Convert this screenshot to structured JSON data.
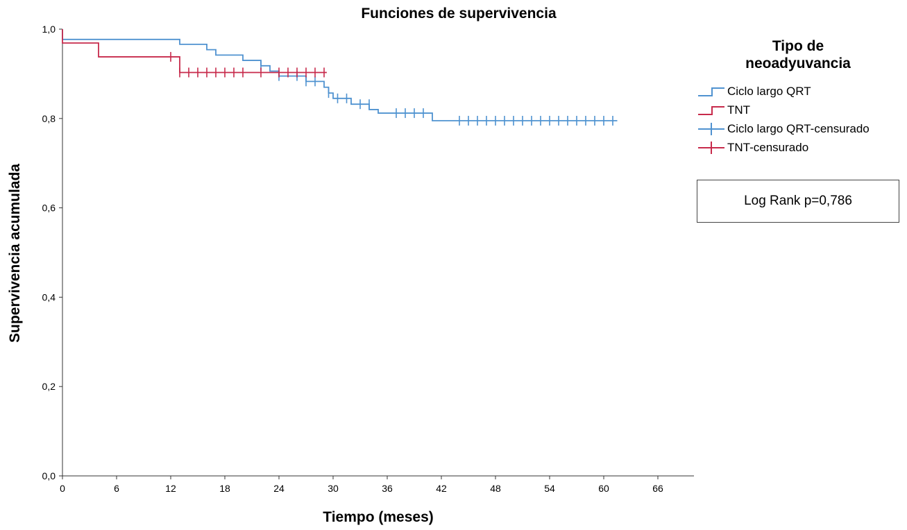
{
  "chart_data": {
    "type": "line",
    "step": true,
    "title": "Funciones de supervivencia",
    "xlabel": "Tiempo (meses)",
    "ylabel": "Supervivencia acumulada",
    "xlim": [
      0,
      70
    ],
    "ylim": [
      0,
      1
    ],
    "xticks": [
      0,
      6,
      12,
      18,
      24,
      30,
      36,
      42,
      48,
      54,
      60,
      66
    ],
    "xtick_labels": [
      "0",
      "6",
      "12",
      "18",
      "24",
      "30",
      "36",
      "42",
      "48",
      "54",
      "60",
      "66"
    ],
    "yticks": [
      0,
      0.2,
      0.4,
      0.6,
      0.8,
      1.0
    ],
    "ytick_labels": [
      "0,0",
      "0,2",
      "0,4",
      "0,6",
      "0,8",
      "1,0"
    ],
    "grid": false,
    "legend": {
      "title": "Tipo de neoadyuvancia",
      "title_lines": [
        "Tipo de",
        "neoadyuvancia"
      ],
      "placement": "right",
      "entries": [
        "Ciclo largo QRT",
        "TNT",
        "Ciclo largo QRT-censurado",
        "TNT-censurado"
      ]
    },
    "annotation": "Log Rank p=0,786",
    "series": [
      {
        "name": "Ciclo largo QRT",
        "color": "#4f92d0",
        "steps": [
          [
            0,
            1.0
          ],
          [
            0,
            0.977
          ],
          [
            13,
            0.966
          ],
          [
            16,
            0.954
          ],
          [
            17,
            0.942
          ],
          [
            20,
            0.93
          ],
          [
            22,
            0.918
          ],
          [
            23,
            0.906
          ],
          [
            24,
            0.895
          ],
          [
            27,
            0.883
          ],
          [
            29,
            0.87
          ],
          [
            29.5,
            0.857
          ],
          [
            30,
            0.845
          ],
          [
            32,
            0.832
          ],
          [
            34,
            0.82
          ],
          [
            35,
            0.812
          ],
          [
            41,
            0.795
          ],
          [
            61.5,
            0.795
          ]
        ],
        "censored": [
          [
            22,
            0.918
          ],
          [
            24,
            0.895
          ],
          [
            26,
            0.895
          ],
          [
            27,
            0.883
          ],
          [
            28,
            0.883
          ],
          [
            29.5,
            0.857
          ],
          [
            30.5,
            0.845
          ],
          [
            31.5,
            0.845
          ],
          [
            33,
            0.832
          ],
          [
            34,
            0.832
          ],
          [
            37,
            0.812
          ],
          [
            38,
            0.812
          ],
          [
            39,
            0.812
          ],
          [
            40,
            0.812
          ],
          [
            44,
            0.795
          ],
          [
            45,
            0.795
          ],
          [
            46,
            0.795
          ],
          [
            47,
            0.795
          ],
          [
            48,
            0.795
          ],
          [
            49,
            0.795
          ],
          [
            50,
            0.795
          ],
          [
            51,
            0.795
          ],
          [
            52,
            0.795
          ],
          [
            53,
            0.795
          ],
          [
            54,
            0.795
          ],
          [
            55,
            0.795
          ],
          [
            56,
            0.795
          ],
          [
            57,
            0.795
          ],
          [
            58,
            0.795
          ],
          [
            59,
            0.795
          ],
          [
            60,
            0.795
          ],
          [
            61,
            0.795
          ]
        ]
      },
      {
        "name": "TNT",
        "color": "#c72a4b",
        "steps": [
          [
            0,
            1.0
          ],
          [
            0,
            0.969
          ],
          [
            4,
            0.938
          ],
          [
            13,
            0.903
          ],
          [
            29.3,
            0.903
          ]
        ],
        "censored": [
          [
            12,
            0.938
          ],
          [
            13,
            0.903
          ],
          [
            14,
            0.903
          ],
          [
            15,
            0.903
          ],
          [
            16,
            0.903
          ],
          [
            17,
            0.903
          ],
          [
            18,
            0.903
          ],
          [
            19,
            0.903
          ],
          [
            20,
            0.903
          ],
          [
            22,
            0.903
          ],
          [
            24,
            0.903
          ],
          [
            25,
            0.903
          ],
          [
            26,
            0.903
          ],
          [
            27,
            0.903
          ],
          [
            28,
            0.903
          ],
          [
            29,
            0.903
          ]
        ]
      }
    ]
  }
}
